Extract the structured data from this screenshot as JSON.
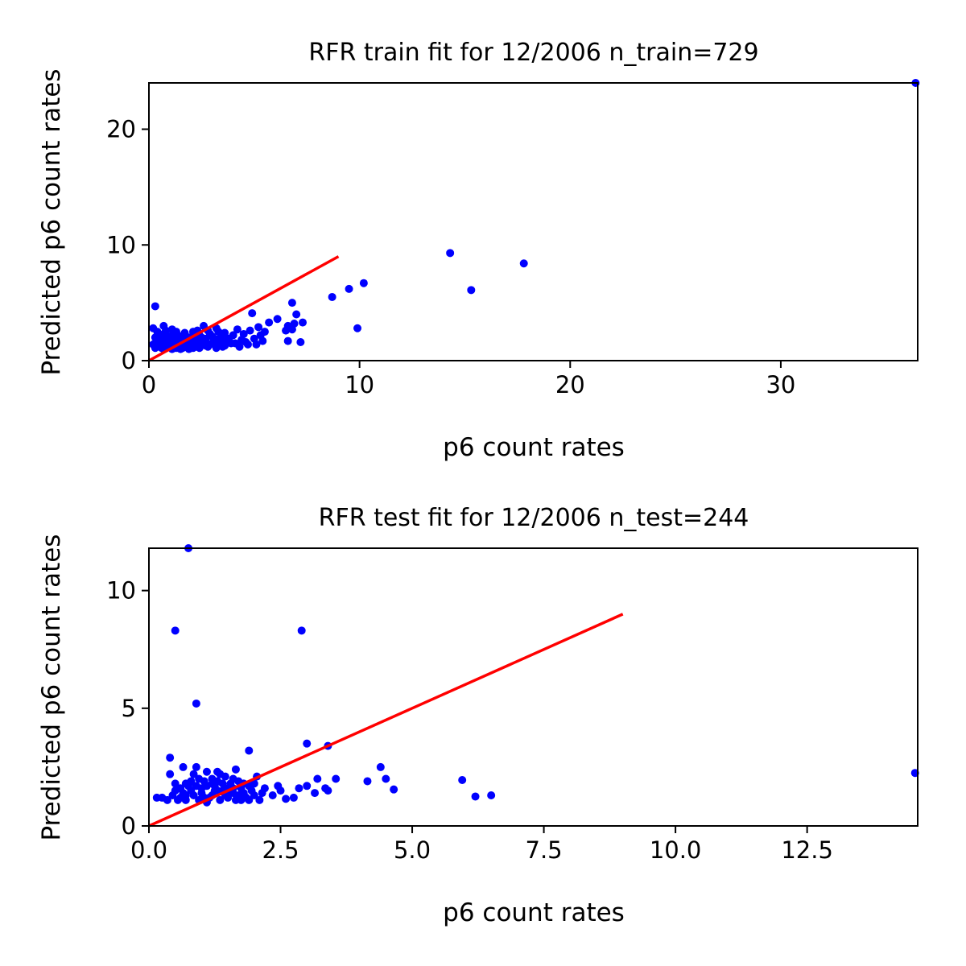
{
  "chart_data": [
    {
      "type": "scatter",
      "title": "RFR train fit for 12/2006 n_train=729",
      "xlabel": "p6 count rates",
      "ylabel": "Predicted p6 count rates",
      "xlim": [
        0,
        36.5
      ],
      "ylim": [
        0,
        24
      ],
      "xticks": [
        0,
        10,
        20,
        30
      ],
      "xtick_labels": [
        "0",
        "10",
        "20",
        "30"
      ],
      "yticks": [
        0,
        10,
        20
      ],
      "ytick_labels": [
        "0",
        "10",
        "20"
      ],
      "grid": false,
      "colors": {
        "points": "#0000ff",
        "line": "#ff0000"
      },
      "reference_line": {
        "x": [
          0,
          9
        ],
        "y": [
          0,
          9
        ]
      },
      "points": [
        [
          0.3,
          4.7
        ],
        [
          0.2,
          2.8
        ],
        [
          0.4,
          2.5
        ],
        [
          0.5,
          2.2
        ],
        [
          0.6,
          1.8
        ],
        [
          0.7,
          3.0
        ],
        [
          0.8,
          2.6
        ],
        [
          0.9,
          2.0
        ],
        [
          1.0,
          1.5
        ],
        [
          1.1,
          2.7
        ],
        [
          1.2,
          2.3
        ],
        [
          1.3,
          1.9
        ],
        [
          1.4,
          1.4
        ],
        [
          1.5,
          2.1
        ],
        [
          1.6,
          1.7
        ],
        [
          1.7,
          2.4
        ],
        [
          1.8,
          1.3
        ],
        [
          1.9,
          2.0
        ],
        [
          2.0,
          1.6
        ],
        [
          2.1,
          2.5
        ],
        [
          2.2,
          1.2
        ],
        [
          2.3,
          1.8
        ],
        [
          2.4,
          2.2
        ],
        [
          2.5,
          1.5
        ],
        [
          2.6,
          3.0
        ],
        [
          2.7,
          1.9
        ],
        [
          2.8,
          2.6
        ],
        [
          2.9,
          1.4
        ],
        [
          3.0,
          2.1
        ],
        [
          3.1,
          1.7
        ],
        [
          3.2,
          2.8
        ],
        [
          3.3,
          1.3
        ],
        [
          3.4,
          2.0
        ],
        [
          3.5,
          1.6
        ],
        [
          3.6,
          2.4
        ],
        [
          3.8,
          1.9
        ],
        [
          4.0,
          2.2
        ],
        [
          4.1,
          1.5
        ],
        [
          4.2,
          2.7
        ],
        [
          4.4,
          1.8
        ],
        [
          4.5,
          2.3
        ],
        [
          4.7,
          1.4
        ],
        [
          4.8,
          2.6
        ],
        [
          4.9,
          4.1
        ],
        [
          5.0,
          1.9
        ],
        [
          5.2,
          2.9
        ],
        [
          5.4,
          1.7
        ],
        [
          5.5,
          2.5
        ],
        [
          5.7,
          3.3
        ],
        [
          6.1,
          3.6
        ],
        [
          6.5,
          2.6
        ],
        [
          6.6,
          3.0
        ],
        [
          6.6,
          1.7
        ],
        [
          6.8,
          5.0
        ],
        [
          6.8,
          2.7
        ],
        [
          6.9,
          3.2
        ],
        [
          7.0,
          4.0
        ],
        [
          7.2,
          1.6
        ],
        [
          7.3,
          3.3
        ],
        [
          8.7,
          5.5
        ],
        [
          9.5,
          6.2
        ],
        [
          9.9,
          2.8
        ],
        [
          10.2,
          6.7
        ],
        [
          14.3,
          9.3
        ],
        [
          15.3,
          6.1
        ],
        [
          17.8,
          8.4
        ],
        [
          36.4,
          24.0
        ],
        [
          0.3,
          1.1
        ],
        [
          0.5,
          1.3
        ],
        [
          0.7,
          1.0
        ],
        [
          0.9,
          1.2
        ],
        [
          1.1,
          1.0
        ],
        [
          1.3,
          1.1
        ],
        [
          1.5,
          1.0
        ],
        [
          1.7,
          1.2
        ],
        [
          1.9,
          1.0
        ],
        [
          2.1,
          1.1
        ],
        [
          0.4,
          1.6
        ],
        [
          0.6,
          1.4
        ],
        [
          0.8,
          1.7
        ],
        [
          1.0,
          2.1
        ],
        [
          1.2,
          1.5
        ],
        [
          1.4,
          1.8
        ],
        [
          1.6,
          1.1
        ],
        [
          1.8,
          1.9
        ],
        [
          2.0,
          1.3
        ],
        [
          2.2,
          1.6
        ],
        [
          2.4,
          1.1
        ],
        [
          2.6,
          1.7
        ],
        [
          2.8,
          1.2
        ],
        [
          3.0,
          1.5
        ],
        [
          3.2,
          1.1
        ],
        [
          3.4,
          1.6
        ],
        [
          3.6,
          1.3
        ],
        [
          3.9,
          1.5
        ],
        [
          4.3,
          1.2
        ],
        [
          4.6,
          1.6
        ],
        [
          5.1,
          1.4
        ],
        [
          5.3,
          2.2
        ],
        [
          0.2,
          1.4
        ],
        [
          0.3,
          2.0
        ],
        [
          0.5,
          1.9
        ],
        [
          0.7,
          2.3
        ],
        [
          0.9,
          1.6
        ],
        [
          1.1,
          1.7
        ],
        [
          1.3,
          2.5
        ],
        [
          1.5,
          1.5
        ],
        [
          1.7,
          1.6
        ],
        [
          1.9,
          1.4
        ],
        [
          2.1,
          1.9
        ],
        [
          2.3,
          2.6
        ],
        [
          2.5,
          2.0
        ],
        [
          2.7,
          1.3
        ],
        [
          2.9,
          2.3
        ],
        [
          3.1,
          1.9
        ],
        [
          3.3,
          2.5
        ],
        [
          3.5,
          1.2
        ],
        [
          3.7,
          1.8
        ],
        [
          1.0,
          1.2
        ],
        [
          1.4,
          1.3
        ],
        [
          1.8,
          1.5
        ],
        [
          2.2,
          1.4
        ],
        [
          0.6,
          1.1
        ],
        [
          0.8,
          1.3
        ],
        [
          1.6,
          1.3
        ],
        [
          2.0,
          1.8
        ],
        [
          2.4,
          1.4
        ]
      ]
    },
    {
      "type": "scatter",
      "title": "RFR test fit for 12/2006 n_test=244",
      "xlabel": "p6 count rates",
      "ylabel": "Predicted p6 count rates",
      "xlim": [
        0,
        14.6
      ],
      "ylim": [
        0,
        11.8
      ],
      "xticks": [
        0,
        2.5,
        5,
        7.5,
        10,
        12.5
      ],
      "xtick_labels": [
        "0.0",
        "2.5",
        "5.0",
        "7.5",
        "10.0",
        "12.5"
      ],
      "yticks": [
        0,
        5,
        10
      ],
      "ytick_labels": [
        "0",
        "5",
        "10"
      ],
      "grid": false,
      "colors": {
        "points": "#0000ff",
        "line": "#ff0000"
      },
      "reference_line": {
        "x": [
          0,
          9
        ],
        "y": [
          0,
          9
        ]
      },
      "points": [
        [
          0.75,
          11.8
        ],
        [
          0.5,
          8.3
        ],
        [
          2.9,
          8.3
        ],
        [
          0.9,
          5.2
        ],
        [
          3.0,
          3.5
        ],
        [
          3.4,
          3.4
        ],
        [
          1.9,
          3.2
        ],
        [
          0.4,
          2.9
        ],
        [
          0.65,
          2.5
        ],
        [
          0.9,
          2.5
        ],
        [
          1.1,
          2.3
        ],
        [
          1.3,
          2.3
        ],
        [
          1.65,
          2.4
        ],
        [
          2.05,
          2.1
        ],
        [
          3.2,
          2.0
        ],
        [
          3.55,
          2.0
        ],
        [
          4.15,
          1.9
        ],
        [
          4.4,
          2.5
        ],
        [
          4.5,
          2.0
        ],
        [
          4.65,
          1.55
        ],
        [
          5.95,
          1.95
        ],
        [
          6.2,
          1.25
        ],
        [
          6.5,
          1.3
        ],
        [
          14.55,
          2.25
        ],
        [
          0.15,
          1.2
        ],
        [
          0.25,
          1.2
        ],
        [
          0.4,
          2.2
        ],
        [
          0.5,
          1.8
        ],
        [
          0.6,
          1.6
        ],
        [
          0.7,
          1.3
        ],
        [
          0.8,
          1.9
        ],
        [
          0.85,
          2.2
        ],
        [
          1.0,
          1.4
        ],
        [
          1.1,
          1.7
        ],
        [
          1.2,
          2.0
        ],
        [
          1.3,
          1.5
        ],
        [
          1.4,
          1.8
        ],
        [
          1.5,
          1.2
        ],
        [
          1.6,
          1.6
        ],
        [
          1.7,
          1.9
        ],
        [
          1.8,
          1.4
        ],
        [
          1.9,
          1.7
        ],
        [
          2.0,
          1.3
        ],
        [
          2.1,
          1.1
        ],
        [
          2.2,
          1.6
        ],
        [
          2.35,
          1.3
        ],
        [
          2.45,
          1.7
        ],
        [
          2.6,
          1.15
        ],
        [
          2.75,
          1.2
        ],
        [
          2.85,
          1.6
        ],
        [
          3.0,
          1.7
        ],
        [
          3.15,
          1.4
        ],
        [
          3.35,
          1.6
        ],
        [
          3.4,
          1.5
        ],
        [
          0.45,
          1.3
        ],
        [
          0.55,
          1.1
        ],
        [
          0.65,
          1.4
        ],
        [
          0.75,
          1.7
        ],
        [
          0.95,
          1.1
        ],
        [
          1.05,
          1.9
        ],
        [
          1.15,
          1.2
        ],
        [
          1.25,
          1.7
        ],
        [
          1.35,
          1.1
        ],
        [
          1.45,
          2.1
        ],
        [
          1.55,
          1.4
        ],
        [
          1.65,
          1.1
        ],
        [
          1.75,
          1.6
        ],
        [
          1.85,
          1.2
        ],
        [
          1.95,
          1.5
        ],
        [
          0.5,
          1.5
        ],
        [
          0.7,
          1.1
        ],
        [
          0.9,
          1.7
        ],
        [
          1.1,
          1.0
        ],
        [
          1.3,
          1.9
        ],
        [
          1.5,
          1.6
        ],
        [
          1.7,
          1.3
        ],
        [
          1.9,
          1.1
        ],
        [
          2.0,
          1.8
        ],
        [
          0.6,
          1.2
        ],
        [
          0.8,
          1.5
        ],
        [
          1.0,
          1.6
        ],
        [
          1.2,
          1.3
        ],
        [
          1.4,
          1.5
        ],
        [
          1.6,
          2.0
        ],
        [
          1.8,
          1.8
        ],
        [
          0.35,
          1.1
        ],
        [
          0.85,
          1.3
        ],
        [
          1.25,
          1.5
        ],
        [
          1.55,
          1.8
        ],
        [
          1.75,
          1.1
        ],
        [
          2.15,
          1.4
        ],
        [
          2.5,
          1.5
        ],
        [
          0.7,
          1.8
        ],
        [
          1.05,
          1.2
        ],
        [
          1.45,
          1.3
        ],
        [
          0.95,
          2.0
        ],
        [
          1.35,
          2.2
        ],
        [
          1.6,
          1.4
        ],
        [
          1.2,
          1.8
        ],
        [
          0.55,
          1.6
        ]
      ]
    }
  ]
}
